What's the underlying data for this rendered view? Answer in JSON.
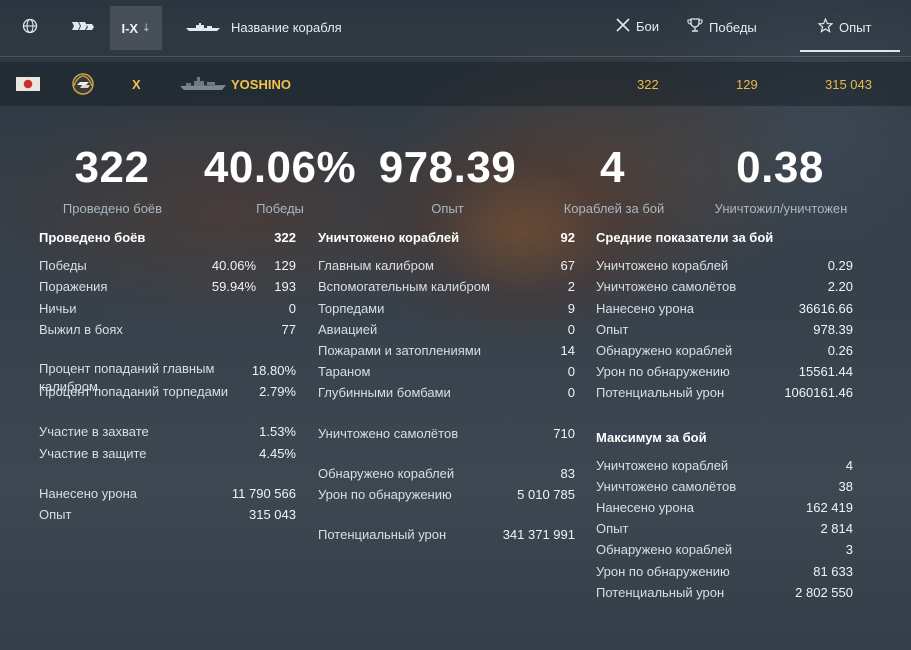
{
  "topbar": {
    "tier_label": "I-X",
    "ship_name_label": "Название корабля",
    "sort_battles": "Бои",
    "sort_wins": "Победы",
    "sort_exp": "Опыт"
  },
  "ship": {
    "tier": "X",
    "name": "YOSHINO",
    "battles": "322",
    "wins": "129",
    "exp": "315 043"
  },
  "summary": [
    {
      "value": "322",
      "label": "Проведено боёв"
    },
    {
      "value": "40.06%",
      "label": "Победы"
    },
    {
      "value": "978.39",
      "label": "Опыт"
    },
    {
      "value": "4",
      "label": "Кораблей за бой"
    },
    {
      "value": "0.38",
      "label": "Уничтожил/уничтожен"
    }
  ],
  "col1": {
    "header": {
      "label": "Проведено боёв",
      "value": "322"
    },
    "wins": {
      "label": "Победы",
      "pct": "40.06%",
      "value": "129"
    },
    "losses": {
      "label": "Поражения",
      "pct": "59.94%",
      "value": "193"
    },
    "draws": {
      "label": "Ничьи",
      "value": "0"
    },
    "survived": {
      "label": "Выжил в боях",
      "value": "77"
    },
    "main_hit": {
      "label": "Процент попаданий главным калибром",
      "value": "18.80%"
    },
    "torp_hit": {
      "label": "Процент попаданий торпедами",
      "value": "2.79%"
    },
    "capture": {
      "label": "Участие в захвате",
      "value": "1.53%"
    },
    "defense": {
      "label": "Участие в защите",
      "value": "4.45%"
    },
    "damage": {
      "label": "Нанесено урона",
      "value": "11 790 566"
    },
    "exp": {
      "label": "Опыт",
      "value": "315 043"
    }
  },
  "col2": {
    "header": {
      "label": "Уничтожено кораблей",
      "value": "92"
    },
    "main": {
      "label": "Главным калибром",
      "value": "67"
    },
    "secondary": {
      "label": "Вспомогательным калибром",
      "value": "2"
    },
    "torpedoes": {
      "label": "Торпедами",
      "value": "9"
    },
    "aviation": {
      "label": "Авиацией",
      "value": "0"
    },
    "fires": {
      "label": "Пожарами и затоплениями",
      "value": "14"
    },
    "ram": {
      "label": "Тараном",
      "value": "0"
    },
    "depth": {
      "label": "Глубинными бомбами",
      "value": "0"
    },
    "planes": {
      "label": "Уничтожено самолётов",
      "value": "710"
    },
    "spotted": {
      "label": "Обнаружено кораблей",
      "value": "83"
    },
    "spot_dmg": {
      "label": "Урон по обнаружению",
      "value": "5 010 785"
    },
    "potential": {
      "label": "Потенциальный урон",
      "value": "341 371 991"
    }
  },
  "col3": {
    "avg_header": "Средние показатели за бой",
    "avg": [
      {
        "label": "Уничтожено кораблей",
        "value": "0.29"
      },
      {
        "label": "Уничтожено самолётов",
        "value": "2.20"
      },
      {
        "label": "Нанесено урона",
        "value": "36616.66"
      },
      {
        "label": "Опыт",
        "value": "978.39"
      },
      {
        "label": "Обнаружено кораблей",
        "value": "0.26"
      },
      {
        "label": "Урон по обнаружению",
        "value": "15561.44"
      },
      {
        "label": "Потенциальный урон",
        "value": "1060161.46"
      }
    ],
    "max_header": "Максимум за бой",
    "max": [
      {
        "label": "Уничтожено кораблей",
        "value": "4"
      },
      {
        "label": "Уничтожено самолётов",
        "value": "38"
      },
      {
        "label": "Нанесено урона",
        "value": "162 419"
      },
      {
        "label": "Опыт",
        "value": "2 814"
      },
      {
        "label": "Обнаружено кораблей",
        "value": "3"
      },
      {
        "label": "Урон по обнаружению",
        "value": "81 633"
      },
      {
        "label": "Потенциальный урон",
        "value": "2 802 550"
      }
    ]
  },
  "icons": {
    "globe": "globe-icon",
    "ship_type": "ship-type-icon",
    "ship_silhouette": "ship-silhouette-icon",
    "battles": "crossed-swords-icon",
    "wins": "trophy-icon",
    "exp": "star-icon",
    "flag": "japan-flag-icon",
    "class": "destroyer-class-icon"
  }
}
